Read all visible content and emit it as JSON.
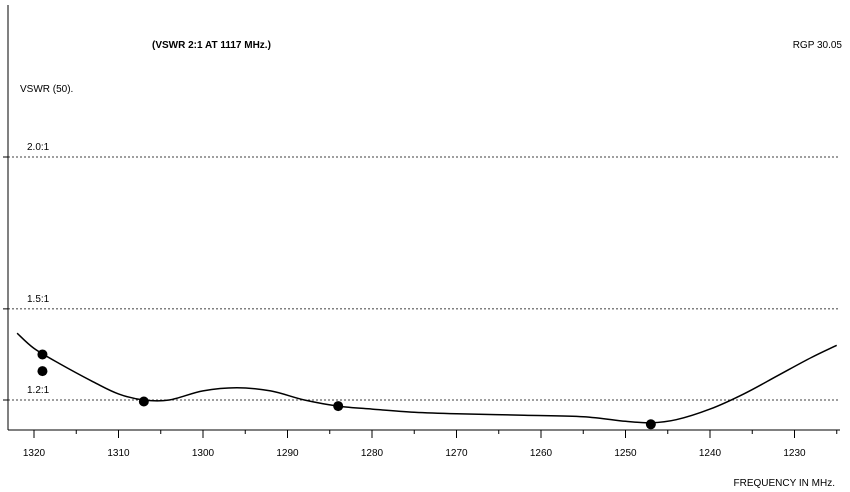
{
  "chart_data": {
    "type": "line",
    "title": "(VSWR 2:1 AT 1117 MHz.)",
    "reference": "RGP 30.05",
    "ylabel": "VSWR (50).",
    "xlabel": "FREQUENCY IN MHz.",
    "x_ticks": [
      1320,
      1310,
      1300,
      1290,
      1280,
      1270,
      1260,
      1250,
      1240,
      1230
    ],
    "x_reversed": true,
    "xlim": [
      1322,
      1225
    ],
    "y_reference_lines": [
      {
        "label": "2.0:1",
        "value": 2.0
      },
      {
        "label": "1.5:1",
        "value": 1.5
      },
      {
        "label": "1.2:1",
        "value": 1.2
      }
    ],
    "ylim": [
      1.1,
      2.5
    ],
    "curve": {
      "x": [
        1322,
        1320,
        1317,
        1313,
        1310,
        1307,
        1304,
        1300,
        1296,
        1292,
        1288,
        1284,
        1280,
        1275,
        1270,
        1262,
        1255,
        1250,
        1247,
        1244,
        1240,
        1236,
        1232,
        1228,
        1225
      ],
      "y": [
        1.42,
        1.37,
        1.32,
        1.26,
        1.22,
        1.2,
        1.2,
        1.23,
        1.24,
        1.23,
        1.2,
        1.18,
        1.17,
        1.16,
        1.155,
        1.15,
        1.145,
        1.13,
        1.125,
        1.135,
        1.17,
        1.22,
        1.28,
        1.34,
        1.38
      ]
    },
    "points": [
      {
        "x": 1319,
        "y": 1.35
      },
      {
        "x": 1319,
        "y": 1.295
      },
      {
        "x": 1307,
        "y": 1.195
      },
      {
        "x": 1284,
        "y": 1.18
      },
      {
        "x": 1247,
        "y": 1.12
      }
    ],
    "grid": false
  }
}
